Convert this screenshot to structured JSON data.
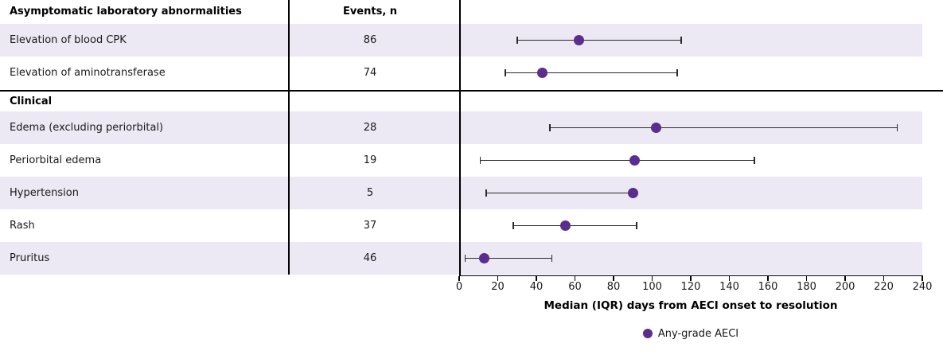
{
  "colors": {
    "marker": "#5b2d8c",
    "stripe": "#ece8f4",
    "line": "#000000"
  },
  "chart_data": {
    "type": "scatter",
    "subtype": "forest-plot-dot-with-iqr-error-bars",
    "xlabel": "Median (IQR) days from AECI onset to resolution",
    "xlim": [
      0,
      240
    ],
    "xticks": [
      0,
      20,
      40,
      60,
      80,
      100,
      120,
      140,
      160,
      180,
      200,
      220,
      240
    ],
    "grid": false,
    "legend": {
      "label": "Any-grade AECI",
      "marker": "filled-circle",
      "marker_color": "#5b2d8c",
      "position": "bottom-center"
    },
    "columns": {
      "events_header": "Events, n"
    },
    "sections": [
      {
        "header": "Asymptomatic laboratory abnormalities",
        "rows": [
          {
            "label": "Elevation of blood CPK",
            "events": 86,
            "median": 62,
            "iqr": [
              30,
              115
            ]
          },
          {
            "label": "Elevation of aminotransferase",
            "events": 74,
            "median": 43,
            "iqr": [
              24,
              113
            ]
          }
        ]
      },
      {
        "header": "Clinical",
        "rows": [
          {
            "label": "Edema (excluding periorbital)",
            "events": 28,
            "median": 102,
            "iqr": [
              47,
              227
            ]
          },
          {
            "label": "Periorbital edema",
            "events": 19,
            "median": 91,
            "iqr": [
              11,
              153
            ]
          },
          {
            "label": "Hypertension",
            "events": 5,
            "median": 90,
            "iqr": [
              14,
              90
            ]
          },
          {
            "label": "Rash",
            "events": 37,
            "median": 55,
            "iqr": [
              28,
              92
            ]
          },
          {
            "label": "Pruritus",
            "events": 46,
            "median": 13,
            "iqr": [
              3,
              48
            ]
          }
        ]
      }
    ]
  }
}
